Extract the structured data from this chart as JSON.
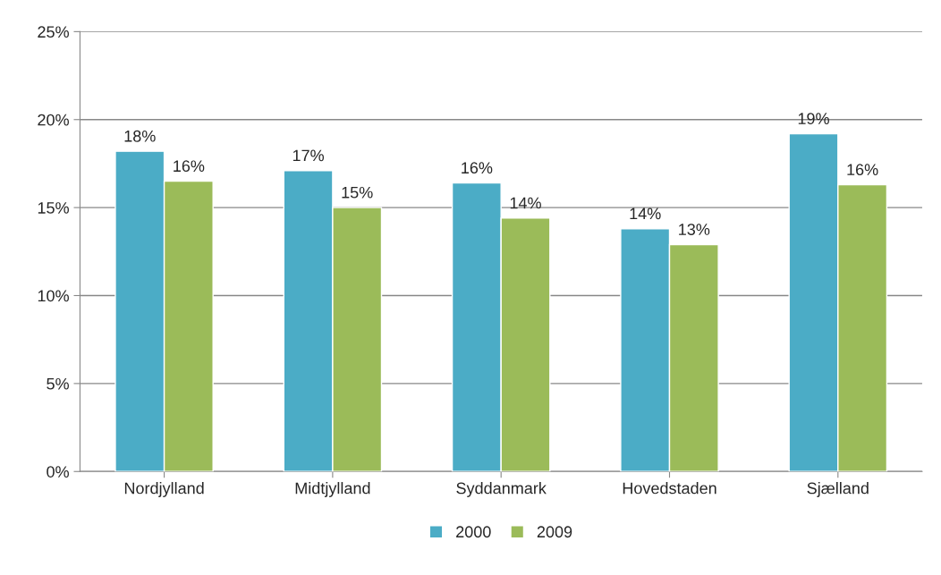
{
  "chart_data": {
    "type": "bar",
    "categories": [
      "Nordjylland",
      "Midtjylland",
      "Syddanmark",
      "Hovedstaden",
      "Sjælland"
    ],
    "series": [
      {
        "name": "2000",
        "color": "#4bacc6",
        "values": [
          18.2,
          17.1,
          16.4,
          13.8,
          19.2
        ],
        "value_labels": [
          "18%",
          "17%",
          "16%",
          "14%",
          "19%"
        ]
      },
      {
        "name": "2009",
        "color": "#9bbb59",
        "values": [
          16.5,
          15.0,
          14.4,
          12.9,
          16.3
        ],
        "value_labels": [
          "16%",
          "15%",
          "14%",
          "13%",
          "16%"
        ]
      }
    ],
    "ylim": [
      0,
      25
    ],
    "yticks": [
      {
        "value": 0,
        "label": "0%"
      },
      {
        "value": 5,
        "label": "5%"
      },
      {
        "value": 10,
        "label": "10%"
      },
      {
        "value": 15,
        "label": "15%"
      },
      {
        "value": 20,
        "label": "20%"
      },
      {
        "value": 25,
        "label": "25%"
      }
    ],
    "grid": "y",
    "legend": "bottom"
  }
}
